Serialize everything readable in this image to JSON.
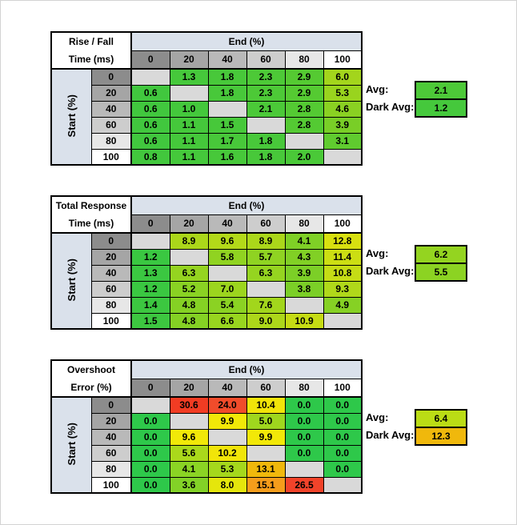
{
  "page": {
    "background": "#ffffff",
    "frame_color": "#d3d3d3"
  },
  "palette": {
    "header_band": "#dae1eb",
    "blank_cell": "#d9d9d9",
    "grid_line": "#000000",
    "header_grays": [
      "#8c8c8c",
      "#a5a5a5",
      "#b9b9b9",
      "#cdcdcd",
      "#e7e7e7",
      "#ffffff"
    ]
  },
  "tables": [
    {
      "id": "rise-fall",
      "title_lines": [
        "Rise / Fall",
        "Time (ms)"
      ],
      "top_header": "End (%)",
      "side_header": "Start (%)",
      "col_headers": [
        "0",
        "20",
        "40",
        "60",
        "80",
        "100"
      ],
      "row_headers": [
        "0",
        "20",
        "40",
        "60",
        "80",
        "100"
      ],
      "rows": [
        [
          null,
          {
            "v": "1.3",
            "c": "#46c83b"
          },
          {
            "v": "1.8",
            "c": "#48c83a"
          },
          {
            "v": "2.3",
            "c": "#4dc937"
          },
          {
            "v": "2.9",
            "c": "#55ca32"
          },
          {
            "v": "6.0",
            "c": "#a3d51c"
          }
        ],
        [
          {
            "v": "0.6",
            "c": "#41c73e"
          },
          null,
          {
            "v": "1.8",
            "c": "#48c83a"
          },
          {
            "v": "2.3",
            "c": "#4dc937"
          },
          {
            "v": "2.9",
            "c": "#55ca32"
          },
          {
            "v": "5.3",
            "c": "#99d41e"
          }
        ],
        [
          {
            "v": "0.6",
            "c": "#41c73e"
          },
          {
            "v": "1.0",
            "c": "#44c83c"
          },
          null,
          {
            "v": "2.1",
            "c": "#4bc938"
          },
          {
            "v": "2.8",
            "c": "#54ca33"
          },
          {
            "v": "4.6",
            "c": "#8ad122"
          }
        ],
        [
          {
            "v": "0.6",
            "c": "#41c73e"
          },
          {
            "v": "1.1",
            "c": "#45c83b"
          },
          {
            "v": "1.5",
            "c": "#47c83a"
          },
          null,
          {
            "v": "2.8",
            "c": "#54ca33"
          },
          {
            "v": "3.9",
            "c": "#79ce27"
          }
        ],
        [
          {
            "v": "0.6",
            "c": "#41c73e"
          },
          {
            "v": "1.1",
            "c": "#45c83b"
          },
          {
            "v": "1.7",
            "c": "#48c83a"
          },
          {
            "v": "1.8",
            "c": "#48c83a"
          },
          null,
          {
            "v": "3.1",
            "c": "#60cb2f"
          }
        ],
        [
          {
            "v": "0.8",
            "c": "#42c73d"
          },
          {
            "v": "1.1",
            "c": "#45c83b"
          },
          {
            "v": "1.6",
            "c": "#47c83a"
          },
          {
            "v": "1.8",
            "c": "#48c83a"
          },
          {
            "v": "2.0",
            "c": "#4ac938"
          },
          null
        ]
      ],
      "summary": {
        "avg_label": "Avg:",
        "avg_value": "2.1",
        "avg_color": "#4dc938",
        "dark_label": "Dark Avg:",
        "dark_value": "1.2",
        "dark_color": "#45c83c"
      }
    },
    {
      "id": "total-response",
      "title_lines": [
        "Total Response",
        "Time (ms)"
      ],
      "top_header": "End (%)",
      "side_header": "Start (%)",
      "col_headers": [
        "0",
        "20",
        "40",
        "60",
        "80",
        "100"
      ],
      "row_headers": [
        "0",
        "20",
        "40",
        "60",
        "80",
        "100"
      ],
      "rows": [
        [
          null,
          {
            "v": "8.9",
            "c": "#abd71a"
          },
          {
            "v": "9.6",
            "c": "#b3d919"
          },
          {
            "v": "8.9",
            "c": "#abd71a"
          },
          {
            "v": "4.1",
            "c": "#7fd026"
          },
          {
            "v": "12.8",
            "c": "#d8e010"
          }
        ],
        [
          {
            "v": "1.2",
            "c": "#3ac741"
          },
          null,
          {
            "v": "5.8",
            "c": "#90d321"
          },
          {
            "v": "5.7",
            "c": "#8fd322"
          },
          {
            "v": "4.3",
            "c": "#81d025"
          },
          {
            "v": "11.4",
            "c": "#ccde13"
          }
        ],
        [
          {
            "v": "1.3",
            "c": "#3bc741"
          },
          {
            "v": "6.3",
            "c": "#95d420"
          },
          null,
          {
            "v": "6.3",
            "c": "#95d420"
          },
          {
            "v": "3.9",
            "c": "#7ccf27"
          },
          {
            "v": "10.8",
            "c": "#c5dc15"
          }
        ],
        [
          {
            "v": "1.2",
            "c": "#3ac741"
          },
          {
            "v": "5.2",
            "c": "#8ad223"
          },
          {
            "v": "7.0",
            "c": "#9cd51e"
          },
          null,
          {
            "v": "3.8",
            "c": "#7bcf27"
          },
          {
            "v": "9.3",
            "c": "#b0d81a"
          }
        ],
        [
          {
            "v": "1.4",
            "c": "#3cc740"
          },
          {
            "v": "4.8",
            "c": "#85d124"
          },
          {
            "v": "5.4",
            "c": "#8bd223"
          },
          {
            "v": "7.6",
            "c": "#a2d61c"
          },
          null,
          {
            "v": "4.9",
            "c": "#86d124"
          }
        ],
        [
          {
            "v": "1.5",
            "c": "#3dc740"
          },
          {
            "v": "4.8",
            "c": "#85d124"
          },
          {
            "v": "6.6",
            "c": "#98d51f"
          },
          {
            "v": "9.0",
            "c": "#add71a"
          },
          {
            "v": "10.9",
            "c": "#c6dc14"
          },
          null
        ]
      ],
      "summary": {
        "avg_label": "Avg:",
        "avg_value": "6.2",
        "avg_color": "#94d420",
        "dark_label": "Dark Avg:",
        "dark_value": "5.5",
        "dark_color": "#8cd322"
      }
    },
    {
      "id": "overshoot",
      "title_lines": [
        "Overshoot",
        "Error (%)"
      ],
      "top_header": "End (%)",
      "side_header": "Start (%)",
      "col_headers": [
        "0",
        "20",
        "40",
        "60",
        "80",
        "100"
      ],
      "row_headers": [
        "0",
        "20",
        "40",
        "60",
        "80",
        "100"
      ],
      "rows": [
        [
          null,
          {
            "v": "30.6",
            "c": "#f13c23"
          },
          {
            "v": "24.0",
            "c": "#f14c2b"
          },
          {
            "v": "10.4",
            "c": "#f1e409"
          },
          {
            "v": "0.0",
            "c": "#2ec84a"
          },
          {
            "v": "0.0",
            "c": "#2ec84a"
          }
        ],
        [
          {
            "v": "0.0",
            "c": "#2ec84a"
          },
          null,
          {
            "v": "9.9",
            "c": "#f2e808"
          },
          {
            "v": "5.0",
            "c": "#9fd71e"
          },
          {
            "v": "0.0",
            "c": "#2ec84a"
          },
          {
            "v": "0.0",
            "c": "#2ec84a"
          }
        ],
        [
          {
            "v": "0.0",
            "c": "#2ec84a"
          },
          {
            "v": "9.6",
            "c": "#f1e808"
          },
          null,
          {
            "v": "9.9",
            "c": "#f2e808"
          },
          {
            "v": "0.0",
            "c": "#2ec84a"
          },
          {
            "v": "0.0",
            "c": "#2ec84a"
          }
        ],
        [
          {
            "v": "0.0",
            "c": "#2ec84a"
          },
          {
            "v": "5.6",
            "c": "#aad91b"
          },
          {
            "v": "10.2",
            "c": "#f1e509"
          },
          null,
          {
            "v": "0.0",
            "c": "#2ec84a"
          },
          {
            "v": "0.0",
            "c": "#2ec84a"
          }
        ],
        [
          {
            "v": "0.0",
            "c": "#2ec84a"
          },
          {
            "v": "4.1",
            "c": "#8bd424"
          },
          {
            "v": "5.3",
            "c": "#a5d81c"
          },
          {
            "v": "13.1",
            "c": "#f0b80c"
          },
          null,
          {
            "v": "0.0",
            "c": "#2ec84a"
          }
        ],
        [
          {
            "v": "0.0",
            "c": "#2ec84a"
          },
          {
            "v": "3.6",
            "c": "#83d227"
          },
          {
            "v": "8.0",
            "c": "#e5e60c"
          },
          {
            "v": "15.1",
            "c": "#f59d1b"
          },
          {
            "v": "26.5",
            "c": "#f2432a"
          },
          null
        ]
      ],
      "summary": {
        "avg_label": "Avg:",
        "avg_value": "6.4",
        "avg_color": "#bbdc15",
        "dark_label": "Dark Avg:",
        "dark_value": "12.3",
        "dark_color": "#f0b80c"
      }
    }
  ]
}
